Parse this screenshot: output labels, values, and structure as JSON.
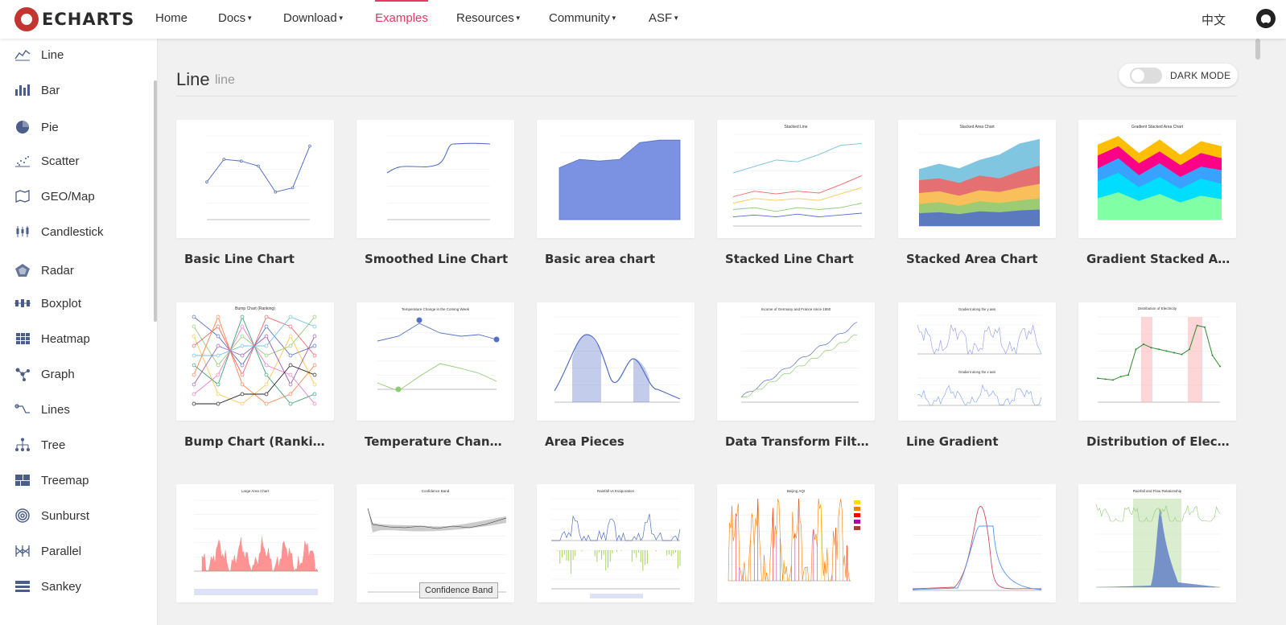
{
  "brand": {
    "name": "ECHARTS"
  },
  "nav": {
    "home": "Home",
    "docs": "Docs",
    "download": "Download",
    "examples": "Examples",
    "resources": "Resources",
    "community": "Community",
    "asf": "ASF",
    "lang": "中文",
    "github_icon": "github-icon"
  },
  "sidebar": {
    "items": [
      {
        "label": "Line",
        "icon": "line-chart-icon"
      },
      {
        "label": "Bar",
        "icon": "bar-chart-icon"
      },
      {
        "label": "Pie",
        "icon": "pie-chart-icon"
      },
      {
        "label": "Scatter",
        "icon": "scatter-chart-icon"
      },
      {
        "label": "GEO/Map",
        "icon": "map-icon"
      },
      {
        "label": "Candlestick",
        "icon": "candlestick-icon"
      },
      {
        "label": "Radar",
        "icon": "radar-icon"
      },
      {
        "label": "Boxplot",
        "icon": "boxplot-icon"
      },
      {
        "label": "Heatmap",
        "icon": "heatmap-icon"
      },
      {
        "label": "Graph",
        "icon": "graph-icon"
      },
      {
        "label": "Lines",
        "icon": "lines-icon"
      },
      {
        "label": "Tree",
        "icon": "tree-icon"
      },
      {
        "label": "Treemap",
        "icon": "treemap-icon"
      },
      {
        "label": "Sunburst",
        "icon": "sunburst-icon"
      },
      {
        "label": "Parallel",
        "icon": "parallel-icon"
      },
      {
        "label": "Sankey",
        "icon": "sankey-icon"
      }
    ]
  },
  "section": {
    "title": "Line",
    "subtitle": "line"
  },
  "dark_mode": {
    "label": "DARK MODE",
    "enabled": false
  },
  "cards": [
    {
      "title": "Basic Line Chart"
    },
    {
      "title": "Smoothed Line Chart"
    },
    {
      "title": "Basic area chart"
    },
    {
      "title": "Stacked Line Chart"
    },
    {
      "title": "Stacked Area Chart"
    },
    {
      "title": "Gradient Stacked Area Chart"
    },
    {
      "title": "Bump Chart (Ranking)"
    },
    {
      "title": "Temperature Change in the Coming Week"
    },
    {
      "title": "Area Pieces"
    },
    {
      "title": "Data Transform Filter"
    },
    {
      "title": "Line Gradient"
    },
    {
      "title": "Distribution of Electricity"
    },
    {
      "title": ""
    },
    {
      "title": ""
    },
    {
      "title": ""
    },
    {
      "title": ""
    },
    {
      "title": ""
    },
    {
      "title": ""
    }
  ],
  "thumb_labels": {
    "stacked_line": "Stacked Line",
    "stacked_area": "Stacked Area Chart",
    "gradient_stacked": "Gradient Stacked Area Chart",
    "bump": "Bump Chart (Ranking)",
    "temperature": "Temperature Change in the Coming Week",
    "data_transform": "Income of Germany and France since 1950",
    "gradient_y": "Gradient along the y axis",
    "gradient_x": "Gradient along the x axis",
    "electricity": "Distribution of Electricity",
    "large_area": "Large Area Chart",
    "confidence": "Confidence Band",
    "rainfall_evap": "Rainfall vs Evaporation",
    "beijing": "Beijing AQI",
    "rainfall_flow": "Rainfall and Flow Relationship"
  },
  "tooltip": "Confidence Band",
  "colors": {
    "accent": "#e43961",
    "brand": "#c23531",
    "icon": "#4b5e8a",
    "chart_blue": "#5470c6"
  }
}
